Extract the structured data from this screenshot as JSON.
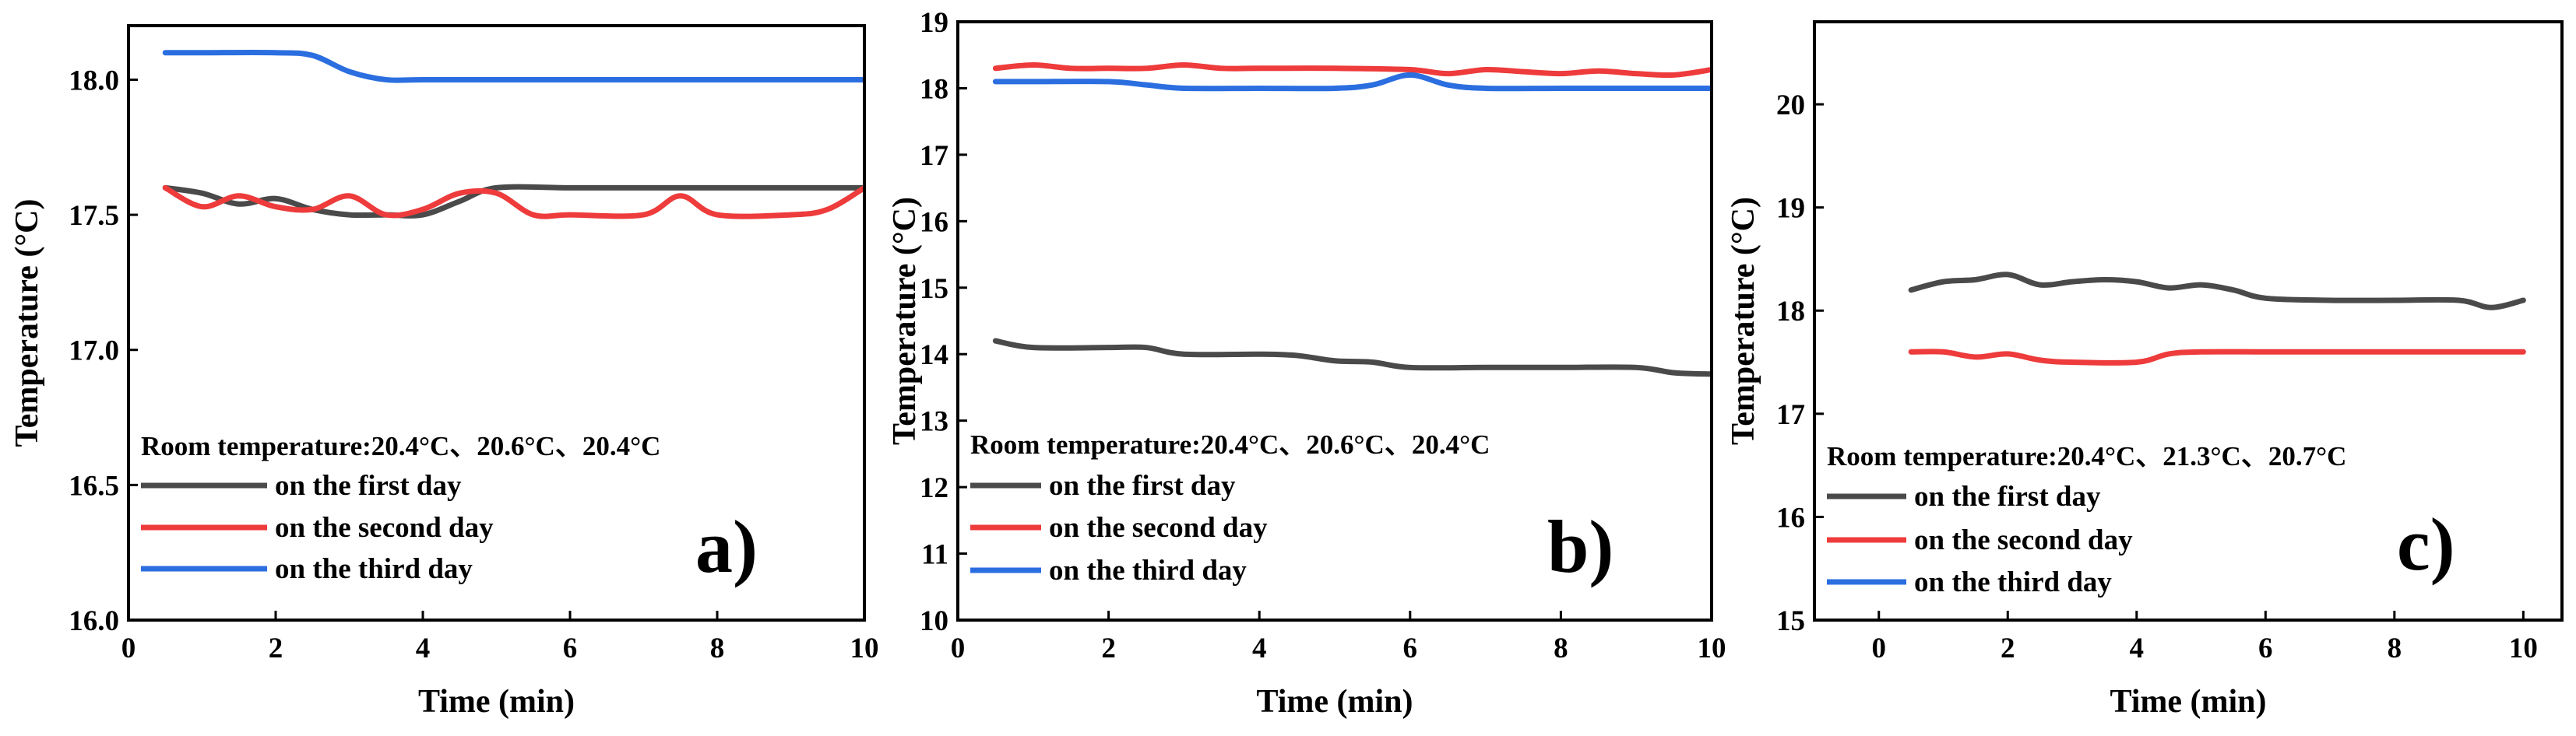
{
  "chart_data": [
    {
      "type": "line",
      "panel_label": "a)",
      "xlabel": "Time (min)",
      "ylabel": "Temperature (°C)",
      "xlim": [
        0,
        10
      ],
      "ylim": [
        16.0,
        18.2
      ],
      "x_ticks": [
        "0",
        "2",
        "4",
        "6",
        "8",
        "10"
      ],
      "y_ticks": [
        "16.0",
        "16.5",
        "17.0",
        "17.5",
        "18.0"
      ],
      "annotation": "Room temperature:20.4°C、20.6°C、20.4°C",
      "legend": [
        "on the first day",
        "on the second day",
        "on the third day"
      ],
      "series": [
        {
          "name": "on the first day",
          "color": "#4a4a4a",
          "x": [
            0.5,
            1.0,
            1.5,
            2.0,
            2.5,
            3.0,
            3.5,
            4.0,
            4.5,
            5.0,
            6.0,
            7.0,
            8.0,
            9.0,
            10.0
          ],
          "y": [
            17.6,
            17.58,
            17.54,
            17.56,
            17.52,
            17.5,
            17.5,
            17.5,
            17.55,
            17.6,
            17.6,
            17.6,
            17.6,
            17.6,
            17.6
          ]
        },
        {
          "name": "on the second day",
          "color": "#ee3b3b",
          "x": [
            0.5,
            1.0,
            1.5,
            2.0,
            2.5,
            3.0,
            3.5,
            4.0,
            4.5,
            5.0,
            5.5,
            6.0,
            7.0,
            7.5,
            8.0,
            9.0,
            9.5,
            10.0
          ],
          "y": [
            17.6,
            17.53,
            17.57,
            17.53,
            17.52,
            17.57,
            17.5,
            17.52,
            17.58,
            17.58,
            17.5,
            17.5,
            17.5,
            17.57,
            17.5,
            17.5,
            17.52,
            17.6
          ]
        },
        {
          "name": "on the third day",
          "color": "#2b6ee0",
          "x": [
            0.5,
            1.0,
            2.0,
            2.5,
            3.0,
            3.5,
            4.0,
            5.0,
            6.0,
            7.0,
            8.0,
            9.0,
            10.0
          ],
          "y": [
            18.1,
            18.1,
            18.1,
            18.09,
            18.03,
            18.0,
            18.0,
            18.0,
            18.0,
            18.0,
            18.0,
            18.0,
            18.0
          ]
        }
      ]
    },
    {
      "type": "line",
      "panel_label": "b)",
      "xlabel": "Time (min)",
      "ylabel": "Temperature (°C)",
      "xlim": [
        0,
        10
      ],
      "ylim": [
        10,
        19
      ],
      "x_ticks": [
        "0",
        "2",
        "4",
        "6",
        "8",
        "10"
      ],
      "y_ticks": [
        "10",
        "11",
        "12",
        "13",
        "14",
        "15",
        "16",
        "17",
        "18",
        "19"
      ],
      "annotation": "Room temperature:20.4°C、20.6°C、20.4°C",
      "legend": [
        "on the first day",
        "on the second day",
        "on the third day"
      ],
      "series": [
        {
          "name": "on the first day",
          "color": "#4a4a4a",
          "x": [
            0.5,
            1.0,
            2.0,
            2.5,
            3.0,
            4.0,
            4.5,
            5.0,
            5.5,
            6.0,
            7.0,
            8.0,
            9.0,
            9.5,
            10.0
          ],
          "y": [
            14.2,
            14.1,
            14.1,
            14.1,
            14.0,
            14.0,
            13.98,
            13.9,
            13.88,
            13.8,
            13.8,
            13.8,
            13.8,
            13.72,
            13.7
          ]
        },
        {
          "name": "on the second day",
          "color": "#ee3b3b",
          "x": [
            0.5,
            1.0,
            1.5,
            2.0,
            2.5,
            3.0,
            3.5,
            4.0,
            5.0,
            6.0,
            6.5,
            7.0,
            7.5,
            8.0,
            8.5,
            9.0,
            9.5,
            10.0
          ],
          "y": [
            18.3,
            18.35,
            18.3,
            18.3,
            18.3,
            18.35,
            18.3,
            18.3,
            18.3,
            18.28,
            18.22,
            18.28,
            18.25,
            18.22,
            18.26,
            18.22,
            18.2,
            18.28
          ]
        },
        {
          "name": "on the third day",
          "color": "#2b6ee0",
          "x": [
            0.5,
            1.0,
            2.0,
            2.5,
            3.0,
            4.0,
            5.0,
            5.5,
            6.0,
            6.5,
            7.0,
            8.0,
            9.0,
            10.0
          ],
          "y": [
            18.1,
            18.1,
            18.1,
            18.05,
            18.0,
            18.0,
            18.0,
            18.05,
            18.2,
            18.05,
            18.0,
            18.0,
            18.0,
            18.0
          ]
        }
      ]
    },
    {
      "type": "line",
      "panel_label": "c)",
      "xlabel": "Time (min)",
      "ylabel": "Temperature (°C)",
      "xlim": [
        -1,
        10.6
      ],
      "ylim": [
        15,
        20.8
      ],
      "x_ticks": [
        "0",
        "2",
        "4",
        "6",
        "8",
        "10"
      ],
      "y_ticks": [
        "15",
        "16",
        "17",
        "18",
        "19",
        "20"
      ],
      "annotation": "Room temperature:20.4°C、21.3°C、20.7°C",
      "legend": [
        "on the first day",
        "on the second day",
        "on the third day"
      ],
      "series": [
        {
          "name": "on the first day",
          "color": "#4a4a4a",
          "x": [
            0.5,
            1.0,
            1.5,
            2.0,
            2.5,
            3.0,
            3.5,
            4.0,
            4.5,
            5.0,
            5.5,
            6.0,
            7.0,
            8.0,
            9.0,
            9.5,
            10.0
          ],
          "y": [
            18.2,
            18.28,
            18.3,
            18.35,
            18.25,
            18.28,
            18.3,
            18.28,
            18.22,
            18.25,
            18.2,
            18.12,
            18.1,
            18.1,
            18.1,
            18.03,
            18.1
          ]
        },
        {
          "name": "on the second day",
          "color": "#ee3b3b",
          "x": [
            0.5,
            1.0,
            1.5,
            2.0,
            2.5,
            3.0,
            4.0,
            4.5,
            5.0,
            6.0,
            7.0,
            8.0,
            9.0,
            10.0
          ],
          "y": [
            17.6,
            17.6,
            17.55,
            17.58,
            17.52,
            17.5,
            17.5,
            17.58,
            17.6,
            17.6,
            17.6,
            17.6,
            17.6,
            17.6
          ]
        }
      ]
    }
  ]
}
